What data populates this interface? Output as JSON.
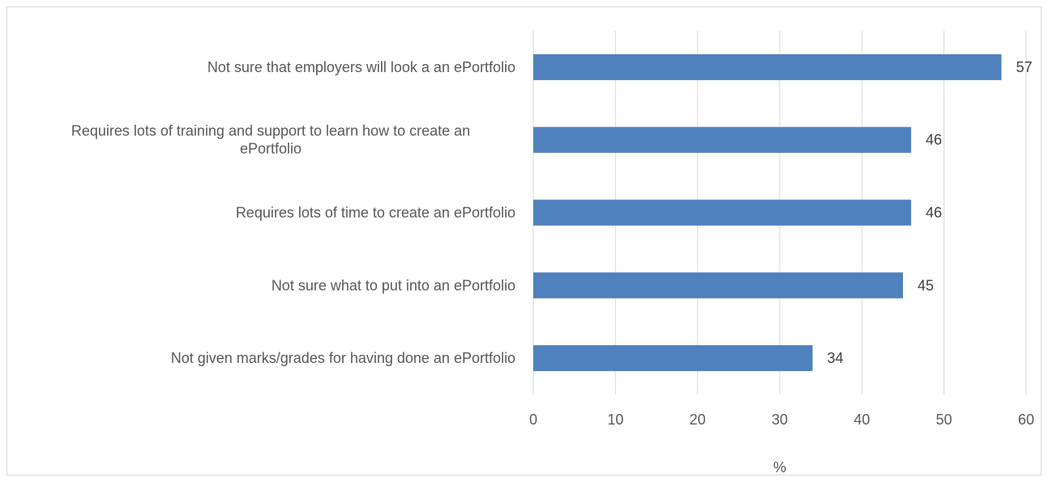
{
  "chart_data": {
    "type": "bar",
    "orientation": "horizontal",
    "categories": [
      "Not sure that employers will look a an ePortfolio",
      "Requires lots of training and support to learn how to create an ePortfolio",
      "Requires lots of time to create an ePortfolio",
      "Not sure what to put into an ePortfolio",
      "Not given marks/grades for having done an ePortfolio"
    ],
    "category_lines": [
      [
        "Not sure that employers will look a an ePortfolio"
      ],
      [
        "Requires lots of training and support to learn how to create an",
        "ePortfolio"
      ],
      [
        "Requires lots of time to create an ePortfolio"
      ],
      [
        "Not sure what to put into an ePortfolio"
      ],
      [
        "Not given marks/grades for having done an ePortfolio"
      ]
    ],
    "values": [
      57,
      46,
      46,
      45,
      34
    ],
    "data_labels": [
      "57",
      "46",
      "46",
      "45",
      "34"
    ],
    "xlabel": "%",
    "ylabel": "",
    "xlim": [
      0,
      60
    ],
    "xticks": [
      0,
      10,
      20,
      30,
      40,
      50,
      60
    ],
    "xtick_labels": [
      "0",
      "10",
      "20",
      "30",
      "40",
      "50",
      "60"
    ],
    "grid": "vertical",
    "legend": "none",
    "bar_color": "#4f81bd",
    "grid_color": "#d9d9d9"
  }
}
